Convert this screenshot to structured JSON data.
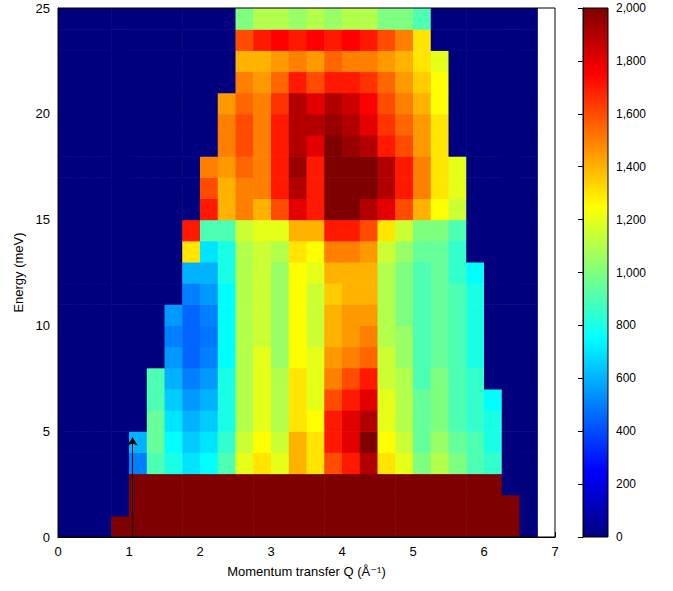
{
  "chart_data": {
    "type": "heatmap",
    "x_label": "Momentum transfer Q (Å⁻¹)",
    "y_label": "Energy (meV)",
    "xlim": [
      0,
      7
    ],
    "xticks": [
      0,
      1,
      2,
      3,
      4,
      5,
      6,
      7
    ],
    "ylim": [
      0,
      25
    ],
    "yticks": [
      0,
      5,
      10,
      15,
      20,
      25
    ],
    "colorbar": {
      "range": [
        0,
        2000
      ],
      "ticks": [
        0,
        200,
        400,
        600,
        800,
        1000,
        1200,
        1400,
        1600,
        1800,
        2000
      ]
    },
    "arrow": {
      "x": 1.05,
      "y": [
        0,
        4.7
      ]
    },
    "x": [
      0.125,
      0.375,
      0.625,
      0.875,
      1.125,
      1.375,
      1.625,
      1.875,
      2.125,
      2.375,
      2.625,
      2.875,
      3.125,
      3.375,
      3.625,
      3.875,
      4.125,
      4.375,
      4.625,
      4.875,
      5.125,
      5.375,
      5.625,
      5.875,
      6.125,
      6.375,
      6.625
    ],
    "y": [
      0.5,
      1.5,
      2.5,
      3.5,
      4.5,
      5.5,
      6.5,
      7.5,
      8.5,
      9.5,
      10.5,
      11.5,
      12.5,
      13.5,
      14.5,
      15.5,
      16.5,
      17.5,
      18.5,
      19.5,
      20.5,
      21.5,
      22.5,
      23.5,
      24.5
    ],
    "values": [
      [
        0,
        0,
        0,
        2000,
        2000,
        2000,
        2000,
        2000,
        2000,
        2000,
        2000,
        2000,
        2000,
        2000,
        2000,
        2000,
        2000,
        2000,
        2000,
        2000,
        2000,
        2000,
        2000,
        2000,
        2000,
        2000,
        0
      ],
      [
        0,
        0,
        0,
        0,
        2000,
        2000,
        2000,
        2000,
        2000,
        2000,
        2000,
        2000,
        2000,
        2000,
        2000,
        2000,
        2000,
        2000,
        2000,
        2000,
        2000,
        2000,
        2000,
        2000,
        2000,
        2000,
        0
      ],
      [
        0,
        0,
        0,
        0,
        2000,
        2000,
        2000,
        2000,
        2000,
        2000,
        2000,
        2000,
        2000,
        2000,
        2000,
        2000,
        2000,
        2000,
        2000,
        2000,
        2000,
        2000,
        2000,
        2000,
        2000,
        0,
        0
      ],
      [
        0,
        0,
        0,
        0,
        500,
        900,
        800,
        700,
        750,
        900,
        1200,
        1300,
        1200,
        1400,
        1300,
        1600,
        1700,
        1900,
        1300,
        1200,
        1000,
        1100,
        1000,
        900,
        850,
        0,
        0
      ],
      [
        0,
        0,
        0,
        0,
        600,
        950,
        750,
        650,
        700,
        850,
        1150,
        1250,
        1150,
        1400,
        1300,
        1700,
        1800,
        2000,
        1250,
        1150,
        950,
        1050,
        950,
        900,
        800,
        0,
        0
      ],
      [
        0,
        0,
        0,
        0,
        0,
        950,
        700,
        600,
        650,
        800,
        1100,
        1200,
        1100,
        1300,
        1250,
        1700,
        1800,
        1900,
        1200,
        1100,
        950,
        1000,
        900,
        850,
        800,
        0,
        0
      ],
      [
        0,
        0,
        0,
        0,
        0,
        900,
        650,
        550,
        600,
        800,
        1100,
        1200,
        1100,
        1300,
        1200,
        1600,
        1700,
        1800,
        1200,
        1100,
        950,
        1000,
        900,
        850,
        750,
        0,
        0
      ],
      [
        0,
        0,
        0,
        0,
        0,
        900,
        600,
        500,
        550,
        800,
        1100,
        1200,
        1100,
        1300,
        1200,
        1500,
        1600,
        1700,
        1150,
        1100,
        900,
        1000,
        900,
        850,
        0,
        0,
        0
      ],
      [
        0,
        0,
        0,
        0,
        0,
        0,
        550,
        450,
        500,
        750,
        1100,
        1200,
        1050,
        1250,
        1200,
        1450,
        1500,
        1550,
        1150,
        1050,
        900,
        950,
        900,
        800,
        0,
        0,
        0
      ],
      [
        0,
        0,
        0,
        0,
        0,
        0,
        500,
        450,
        480,
        750,
        1100,
        1150,
        1050,
        1250,
        1150,
        1400,
        1450,
        1500,
        1100,
        1050,
        900,
        950,
        900,
        800,
        0,
        0,
        0
      ],
      [
        0,
        0,
        0,
        0,
        0,
        0,
        550,
        450,
        500,
        750,
        1100,
        1150,
        1050,
        1250,
        1150,
        1400,
        1450,
        1450,
        1100,
        1000,
        900,
        950,
        900,
        800,
        0,
        0,
        0
      ],
      [
        0,
        0,
        0,
        0,
        0,
        0,
        0,
        500,
        550,
        750,
        1100,
        1150,
        1050,
        1250,
        1150,
        1350,
        1400,
        1400,
        1100,
        1000,
        900,
        950,
        900,
        800,
        0,
        0,
        0
      ],
      [
        0,
        0,
        0,
        0,
        0,
        0,
        0,
        600,
        600,
        800,
        1100,
        1150,
        1050,
        1250,
        1200,
        1400,
        1400,
        1400,
        1100,
        1000,
        900,
        950,
        850,
        750,
        0,
        0,
        0
      ],
      [
        0,
        0,
        0,
        0,
        0,
        0,
        0,
        1300,
        700,
        800,
        1100,
        1150,
        1100,
        1300,
        1250,
        1500,
        1500,
        1450,
        1150,
        1050,
        950,
        950,
        850,
        0,
        0,
        0,
        0
      ],
      [
        0,
        0,
        0,
        0,
        0,
        0,
        0,
        1700,
        900,
        900,
        1150,
        1200,
        1200,
        1400,
        1400,
        1700,
        1700,
        1600,
        1300,
        1150,
        1000,
        1000,
        900,
        0,
        0,
        0,
        0
      ],
      [
        0,
        0,
        0,
        0,
        0,
        0,
        0,
        0,
        1700,
        1400,
        1500,
        1400,
        1600,
        1800,
        1700,
        2000,
        2000,
        1900,
        1800,
        1600,
        1400,
        1250,
        1150,
        0,
        0,
        0,
        0
      ],
      [
        0,
        0,
        0,
        0,
        0,
        0,
        0,
        0,
        1600,
        1400,
        1500,
        1500,
        1700,
        1900,
        1700,
        2000,
        2000,
        2000,
        1900,
        1700,
        1500,
        1300,
        1200,
        0,
        0,
        0,
        0
      ],
      [
        0,
        0,
        0,
        0,
        0,
        0,
        0,
        0,
        1500,
        1450,
        1550,
        1500,
        1700,
        1950,
        1700,
        2000,
        2000,
        2000,
        1900,
        1700,
        1500,
        1300,
        1200,
        0,
        0,
        0,
        0
      ],
      [
        0,
        0,
        0,
        0,
        0,
        0,
        0,
        0,
        0,
        1500,
        1600,
        1500,
        1700,
        1900,
        1800,
        2000,
        1950,
        1900,
        1700,
        1600,
        1450,
        1300,
        0,
        0,
        0,
        0,
        0
      ],
      [
        0,
        0,
        0,
        0,
        0,
        0,
        0,
        0,
        0,
        1500,
        1600,
        1500,
        1700,
        1900,
        1900,
        1950,
        1900,
        1800,
        1650,
        1550,
        1450,
        1300,
        0,
        0,
        0,
        0,
        0
      ],
      [
        0,
        0,
        0,
        0,
        0,
        0,
        0,
        0,
        0,
        1450,
        1550,
        1500,
        1650,
        1900,
        1800,
        1900,
        1850,
        1750,
        1600,
        1500,
        1400,
        1250,
        0,
        0,
        0,
        0,
        0
      ],
      [
        0,
        0,
        0,
        0,
        0,
        0,
        0,
        0,
        0,
        0,
        1500,
        1450,
        1550,
        1700,
        1600,
        1700,
        1700,
        1650,
        1550,
        1450,
        1350,
        1250,
        0,
        0,
        0,
        0,
        0
      ],
      [
        0,
        0,
        0,
        0,
        0,
        0,
        0,
        0,
        0,
        0,
        1400,
        1400,
        1450,
        1500,
        1450,
        1550,
        1500,
        1500,
        1450,
        1400,
        1300,
        1200,
        0,
        0,
        0,
        0,
        0
      ],
      [
        0,
        0,
        0,
        0,
        0,
        0,
        0,
        0,
        0,
        0,
        1600,
        1700,
        1750,
        1700,
        1750,
        1700,
        1750,
        1700,
        1600,
        1500,
        1300,
        0,
        0,
        0,
        0,
        0,
        0
      ],
      [
        0,
        0,
        0,
        0,
        0,
        0,
        0,
        0,
        0,
        0,
        1000,
        1100,
        1100,
        1050,
        1100,
        1050,
        1100,
        1100,
        1000,
        1000,
        900,
        0,
        0,
        0,
        0,
        0,
        0
      ]
    ]
  }
}
